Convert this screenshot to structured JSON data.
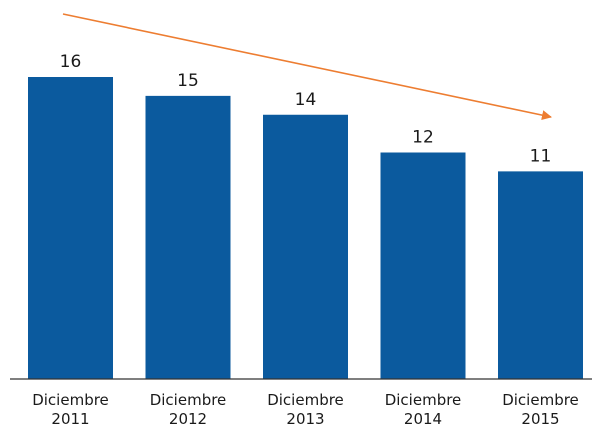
{
  "chart_data": {
    "type": "bar",
    "categories": [
      [
        "Diciembre",
        "2011"
      ],
      [
        "Diciembre",
        "2012"
      ],
      [
        "Diciembre",
        "2013"
      ],
      [
        "Diciembre",
        "2014"
      ],
      [
        "Diciembre",
        "2015"
      ]
    ],
    "values": [
      16,
      15,
      14,
      12,
      11
    ],
    "data_labels": [
      "16",
      "15",
      "14",
      "12",
      "11"
    ],
    "title": "",
    "xlabel": "",
    "ylabel": "",
    "ylim": [
      0,
      16
    ],
    "grid": false,
    "legend": "none",
    "annotations": [
      {
        "type": "trend-arrow",
        "direction": "decreasing",
        "color": "#ed7d31"
      }
    ],
    "colors": {
      "bar": "#0b5a9e",
      "axis": "#333333",
      "arrow": "#ed7d31"
    }
  }
}
